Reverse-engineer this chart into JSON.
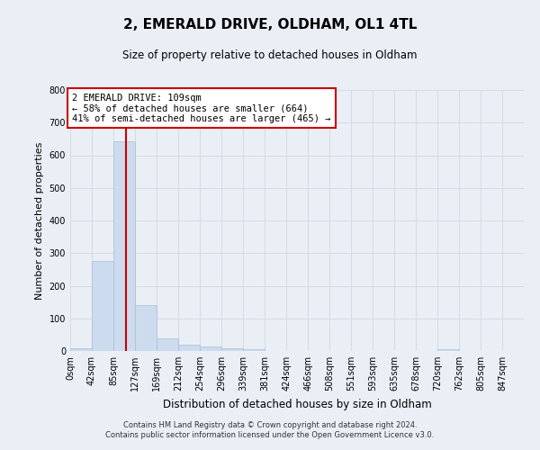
{
  "title": "2, EMERALD DRIVE, OLDHAM, OL1 4TL",
  "subtitle": "Size of property relative to detached houses in Oldham",
  "xlabel": "Distribution of detached houses by size in Oldham",
  "ylabel": "Number of detached properties",
  "bin_labels": [
    "0sqm",
    "42sqm",
    "85sqm",
    "127sqm",
    "169sqm",
    "212sqm",
    "254sqm",
    "296sqm",
    "339sqm",
    "381sqm",
    "424sqm",
    "466sqm",
    "508sqm",
    "551sqm",
    "593sqm",
    "635sqm",
    "678sqm",
    "720sqm",
    "762sqm",
    "805sqm",
    "847sqm"
  ],
  "bin_edges": [
    0,
    42,
    85,
    127,
    169,
    212,
    254,
    296,
    339,
    381,
    424,
    466,
    508,
    551,
    593,
    635,
    678,
    720,
    762,
    805,
    847
  ],
  "bar_heights": [
    8,
    275,
    643,
    140,
    38,
    20,
    13,
    8,
    5,
    0,
    0,
    0,
    0,
    0,
    0,
    0,
    0,
    5,
    0,
    0,
    0
  ],
  "bar_color": "#ccdcee",
  "bar_edge_color": "#aabdd6",
  "vline_x": 109,
  "vline_color": "#cc0000",
  "annotation_text": "2 EMERALD DRIVE: 109sqm\n← 58% of detached houses are smaller (664)\n41% of semi-detached houses are larger (465) →",
  "annotation_box_facecolor": "#ffffff",
  "annotation_box_edgecolor": "#cc0000",
  "ylim": [
    0,
    800
  ],
  "yticks": [
    0,
    100,
    200,
    300,
    400,
    500,
    600,
    700,
    800
  ],
  "grid_color": "#d0d8e4",
  "background_color": "#eaeff6",
  "footer_line1": "Contains HM Land Registry data © Crown copyright and database right 2024.",
  "footer_line2": "Contains public sector information licensed under the Open Government Licence v3.0."
}
